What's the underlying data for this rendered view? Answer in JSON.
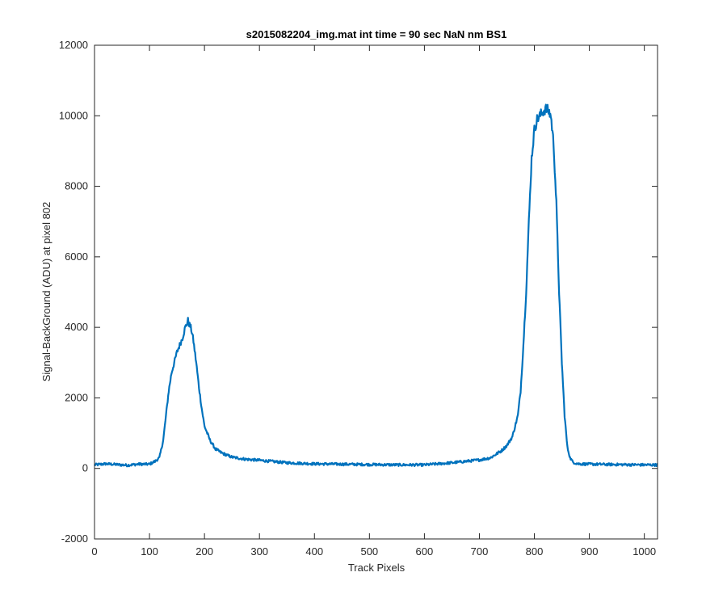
{
  "chart_data": {
    "type": "line",
    "title": "s2015082204_img.mat int time = 90 sec  NaN nm BS1",
    "xlabel": "Track Pixels",
    "ylabel": "Signal-BackGround (ADU) at pixel 802",
    "xlim": [
      0,
      1024
    ],
    "ylim": [
      -2000,
      12000
    ],
    "xticks": [
      0,
      100,
      200,
      300,
      400,
      500,
      600,
      700,
      800,
      900,
      1000
    ],
    "yticks": [
      -2000,
      0,
      2000,
      4000,
      6000,
      8000,
      10000,
      12000
    ],
    "grid": false,
    "line_color": "#0072bd",
    "series": [
      {
        "x": [
          0,
          20,
          40,
          60,
          80,
          100,
          110,
          118,
          125,
          130,
          135,
          140,
          145,
          150,
          155,
          160,
          165,
          168,
          170,
          172,
          175,
          178,
          180,
          185,
          190,
          195,
          200,
          210,
          220,
          230,
          240,
          250,
          275,
          300,
          350,
          400,
          450,
          500,
          550,
          600,
          650,
          700,
          720,
          740,
          750,
          760,
          770,
          775,
          780,
          785,
          790,
          795,
          800,
          805,
          810,
          815,
          820,
          825,
          830,
          835,
          840,
          845,
          850,
          855,
          860,
          865,
          870,
          875,
          880,
          900,
          950,
          1000,
          1024
        ],
        "y": [
          100,
          130,
          110,
          90,
          120,
          120,
          200,
          300,
          800,
          1500,
          2200,
          2700,
          3000,
          3300,
          3500,
          3700,
          4000,
          4100,
          4200,
          4100,
          4000,
          3800,
          3600,
          3000,
          2300,
          1700,
          1200,
          800,
          550,
          450,
          380,
          320,
          260,
          230,
          160,
          130,
          120,
          110,
          100,
          100,
          160,
          240,
          300,
          500,
          650,
          900,
          1500,
          2200,
          3500,
          5000,
          7000,
          8800,
          9600,
          9900,
          10000,
          10100,
          10200,
          10150,
          10000,
          9200,
          7500,
          5000,
          3000,
          1500,
          600,
          300,
          180,
          150,
          130,
          120,
          110,
          100,
          100
        ]
      }
    ]
  }
}
